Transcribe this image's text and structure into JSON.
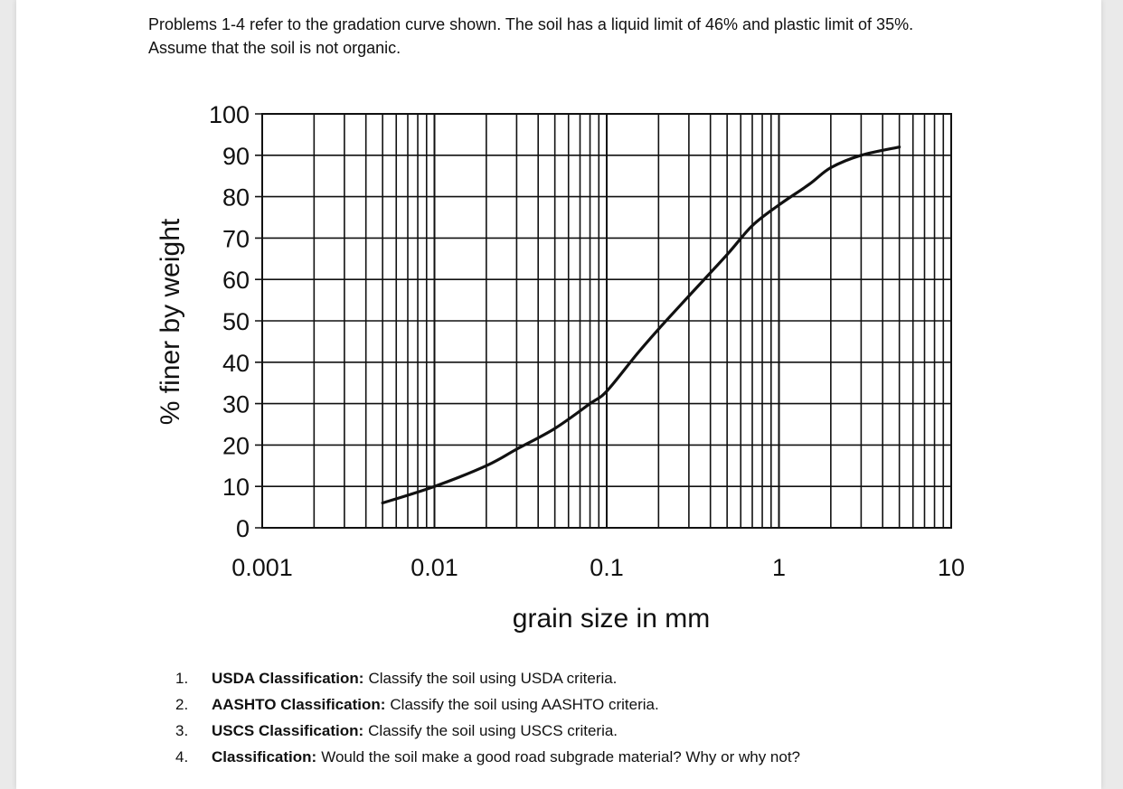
{
  "intro_text": "Problems 1-4 refer to the gradation curve shown. The soil has a liquid limit of 46% and plastic limit of 35%. Assume that the soil is not organic.",
  "questions": [
    {
      "number": "1.",
      "title": "USDA Classification:",
      "text": "Classify the soil using USDA criteria."
    },
    {
      "number": "2.",
      "title": "AASHTO Classification:",
      "text": "Classify the soil using AASHTO criteria."
    },
    {
      "number": "3.",
      "title": "USCS Classification:",
      "text": "Classify the soil using USCS criteria."
    },
    {
      "number": "4.",
      "title": "Classification:",
      "text": "Would the soil make a good road subgrade material? Why or why not?"
    }
  ],
  "chart_data": {
    "type": "line",
    "title": "",
    "xlabel": "grain size in mm",
    "ylabel": "% finer by weight",
    "xscale": "log",
    "xlim": [
      0.001,
      10
    ],
    "ylim": [
      0,
      100
    ],
    "x_ticks": [
      "0.001",
      "0.01",
      "0.1",
      "1",
      "10"
    ],
    "y_ticks": [
      "100",
      "90",
      "80",
      "70",
      "60",
      "50",
      "40",
      "30",
      "20",
      "10",
      "0"
    ],
    "grid": true,
    "series": [
      {
        "x": [
          0.005,
          0.01,
          0.02,
          0.03,
          0.05,
          0.08,
          0.1,
          0.15,
          0.2,
          0.3,
          0.5,
          0.7,
          1.0,
          1.5,
          2.0,
          3.0,
          5.0
        ],
        "y": [
          6,
          10,
          15,
          19,
          24,
          30,
          33,
          42,
          48,
          56,
          66,
          73,
          78,
          83,
          87,
          90,
          92
        ]
      }
    ],
    "colors": {
      "line": "#111111",
      "grid": "#111111"
    }
  }
}
